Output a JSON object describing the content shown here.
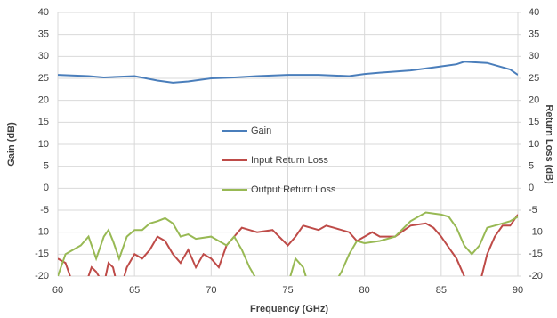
{
  "chart_data": {
    "type": "line",
    "xlabel": "Frequency (GHz)",
    "ylabel": "Gain (dB)",
    "y2label": "Return Loss (dB)",
    "xlim": [
      60,
      90
    ],
    "xticks": [
      60,
      65,
      70,
      75,
      80,
      85,
      90
    ],
    "ylim": [
      -20,
      40
    ],
    "yticks": [
      -20,
      -15,
      -10,
      -5,
      0,
      5,
      10,
      15,
      20,
      25,
      30,
      35,
      40
    ],
    "y2lim": [
      -20,
      40
    ],
    "y2ticks": [
      -20,
      -15,
      -10,
      -5,
      0,
      5,
      10,
      15,
      20,
      25,
      30,
      35,
      40
    ],
    "grid": true,
    "legend": "center",
    "series": [
      {
        "name": "Gain",
        "color": "#4a7ebb",
        "x": [
          60,
          62,
          63,
          65,
          66.5,
          67.5,
          68.5,
          70,
          71.5,
          73,
          75,
          77,
          79,
          80,
          81,
          83,
          84.5,
          86,
          86.5,
          88,
          89.5,
          90
        ],
        "values": [
          25.8,
          25.5,
          25.2,
          25.5,
          24.5,
          24,
          24.3,
          25,
          25.2,
          25.5,
          25.8,
          25.8,
          25.5,
          26,
          26.3,
          26.8,
          27.5,
          28.2,
          28.8,
          28.5,
          27,
          25.8
        ]
      },
      {
        "name": "Input Return Loss",
        "color": "#be4b48",
        "axis": "y2",
        "x": [
          60,
          60.5,
          61,
          61.5,
          62,
          62.2,
          62.5,
          63,
          63.3,
          63.6,
          64,
          64.5,
          65,
          65.5,
          66,
          66.5,
          67,
          67.5,
          68,
          68.5,
          69,
          69.5,
          70,
          70.5,
          71,
          71.5,
          72,
          72.5,
          73,
          74,
          75,
          75.5,
          76,
          77,
          77.5,
          78,
          79,
          79.5,
          80,
          80.5,
          81,
          82,
          83,
          84,
          84.5,
          85,
          86,
          86.5,
          87,
          87.5,
          88,
          88.5,
          89,
          89.5,
          90
        ],
        "values": [
          -16,
          -17,
          -22,
          -25,
          -20,
          -18,
          -19,
          -22,
          -17,
          -18,
          -24,
          -18,
          -15,
          -16,
          -14,
          -11,
          -12,
          -15,
          -17,
          -14,
          -18,
          -15,
          -16,
          -18,
          -13,
          -11,
          -9,
          -9.5,
          -10,
          -9.5,
          -13,
          -11,
          -8.5,
          -9.5,
          -8.5,
          -9,
          -10,
          -12,
          -11,
          -10,
          -11,
          -11,
          -8.5,
          -8,
          -9,
          -11,
          -16,
          -20,
          -25,
          -22,
          -15,
          -11,
          -8.5,
          -8.5,
          -6
        ]
      },
      {
        "name": "Output Return Loss",
        "color": "#98b954",
        "axis": "y2",
        "x": [
          60,
          60.5,
          61,
          61.5,
          62,
          62.5,
          63,
          63.3,
          63.6,
          64,
          64.5,
          65,
          65.5,
          66,
          66.5,
          67,
          67.5,
          68,
          68.5,
          69,
          70,
          70.5,
          71,
          71.5,
          72,
          72.5,
          73,
          74,
          75,
          75.5,
          76,
          76.5,
          77,
          78,
          78.5,
          79,
          79.5,
          80,
          81,
          82,
          83,
          84,
          85,
          85.5,
          86,
          86.5,
          87,
          87.5,
          88,
          89,
          89.5,
          90
        ],
        "values": [
          -20,
          -15,
          -14,
          -13,
          -11,
          -16,
          -11,
          -9.5,
          -12,
          -16,
          -11,
          -9.5,
          -9.5,
          -8,
          -7.5,
          -6.8,
          -8,
          -11,
          -10.5,
          -11.5,
          -11,
          -12,
          -13,
          -11,
          -14,
          -18,
          -21,
          -25,
          -22,
          -16,
          -18,
          -24,
          -26,
          -22,
          -19,
          -15,
          -12,
          -12.5,
          -12,
          -11,
          -7.5,
          -5.5,
          -6,
          -6.5,
          -9,
          -13,
          -15,
          -13,
          -9,
          -8,
          -7.5,
          -6.5
        ]
      }
    ]
  }
}
